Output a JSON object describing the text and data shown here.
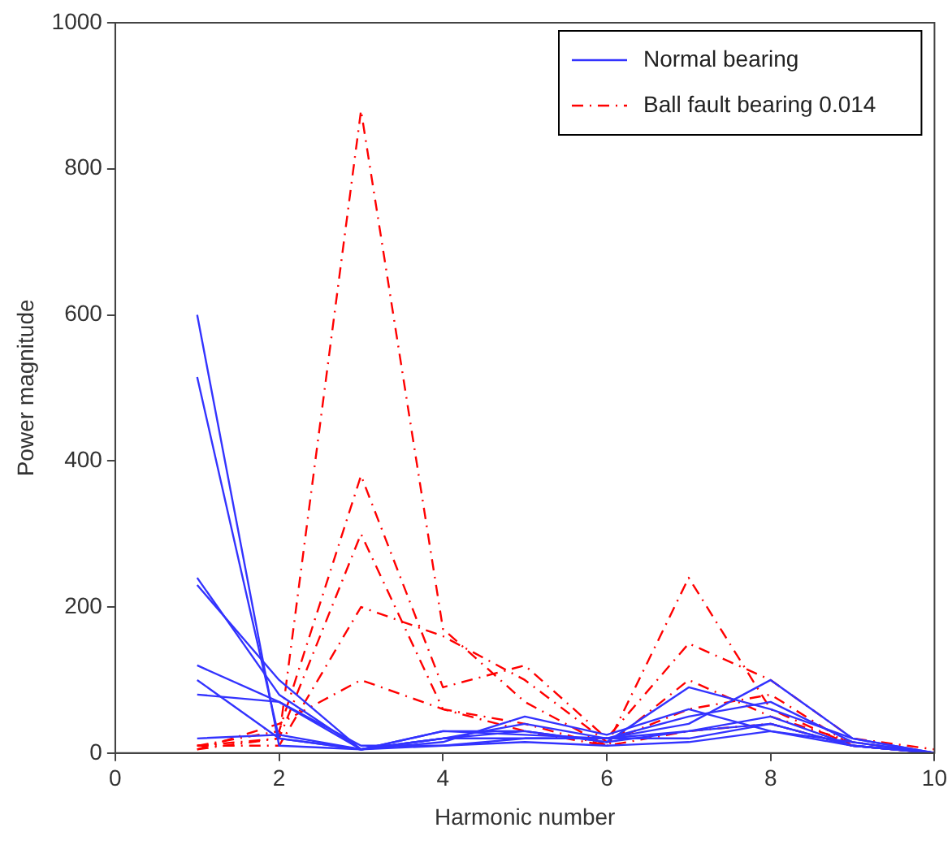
{
  "chart_data": {
    "type": "line",
    "xlabel": "Harmonic number",
    "ylabel": "Power magnitude",
    "x": [
      1,
      2,
      3,
      4,
      5,
      6,
      7,
      8,
      9,
      10
    ],
    "xlim": [
      0,
      10
    ],
    "xticks": [
      0,
      2,
      4,
      6,
      8,
      10
    ],
    "ylim": [
      0,
      1000
    ],
    "yticks": [
      0,
      200,
      400,
      600,
      800,
      1000
    ],
    "grid": false,
    "legend": "top right",
    "marker": "none",
    "series": [
      {
        "name": "Normal bearing",
        "color": "#3333ff",
        "line_style": "solid",
        "values": [
          600,
          10,
          5,
          20,
          40,
          20,
          30,
          40,
          10,
          0
        ]
      },
      {
        "color": "#3333ff",
        "line_style": "solid",
        "values": [
          515,
          20,
          5,
          15,
          50,
          25,
          60,
          30,
          15,
          0
        ]
      },
      {
        "color": "#3333ff",
        "line_style": "solid",
        "values": [
          240,
          80,
          5,
          30,
          30,
          15,
          90,
          60,
          20,
          0
        ]
      },
      {
        "color": "#3333ff",
        "line_style": "solid",
        "values": [
          230,
          100,
          5,
          20,
          20,
          20,
          40,
          100,
          20,
          0
        ]
      },
      {
        "color": "#3333ff",
        "line_style": "solid",
        "values": [
          120,
          70,
          5,
          30,
          25,
          20,
          50,
          70,
          15,
          0
        ]
      },
      {
        "color": "#3333ff",
        "line_style": "solid",
        "values": [
          100,
          20,
          5,
          20,
          30,
          15,
          30,
          50,
          10,
          0
        ]
      },
      {
        "color": "#3333ff",
        "line_style": "solid",
        "values": [
          80,
          70,
          10,
          10,
          20,
          20,
          20,
          40,
          10,
          0
        ]
      },
      {
        "color": "#3333ff",
        "line_style": "solid",
        "values": [
          20,
          25,
          5,
          10,
          15,
          10,
          15,
          30,
          10,
          0
        ]
      },
      {
        "name": "Ball fault bearing 0.014",
        "color": "#ff0000",
        "line_style": "dashed",
        "values": [
          10,
          20,
          880,
          170,
          70,
          10,
          240,
          60,
          10,
          0
        ]
      },
      {
        "color": "#ff0000",
        "line_style": "dashed",
        "values": [
          10,
          30,
          380,
          90,
          120,
          20,
          150,
          100,
          20,
          5
        ]
      },
      {
        "color": "#ff0000",
        "line_style": "dashed",
        "values": [
          5,
          20,
          300,
          60,
          40,
          10,
          100,
          50,
          15,
          0
        ]
      },
      {
        "color": "#ff0000",
        "line_style": "dashed",
        "values": [
          10,
          10,
          200,
          160,
          100,
          15,
          60,
          80,
          10,
          0
        ]
      },
      {
        "color": "#ff0000",
        "line_style": "dashed",
        "values": [
          5,
          40,
          100,
          60,
          30,
          10,
          30,
          40,
          10,
          0
        ]
      }
    ]
  }
}
